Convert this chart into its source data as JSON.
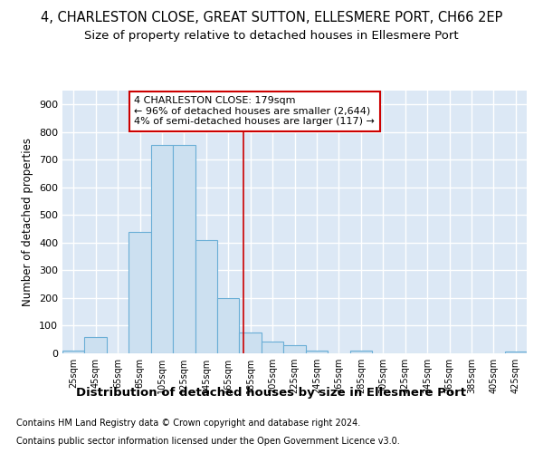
{
  "title1": "4, CHARLESTON CLOSE, GREAT SUTTON, ELLESMERE PORT, CH66 2EP",
  "title2": "Size of property relative to detached houses in Ellesmere Port",
  "xlabel": "Distribution of detached houses by size in Ellesmere Port",
  "ylabel": "Number of detached properties",
  "footnote1": "Contains HM Land Registry data © Crown copyright and database right 2024.",
  "footnote2": "Contains public sector information licensed under the Open Government Licence v3.0.",
  "bin_labels": [
    "25sqm",
    "45sqm",
    "65sqm",
    "85sqm",
    "105sqm",
    "125sqm",
    "145sqm",
    "165sqm",
    "185sqm",
    "205sqm",
    "225sqm",
    "245sqm",
    "265sqm",
    "285sqm",
    "305sqm",
    "325sqm",
    "345sqm",
    "365sqm",
    "385sqm",
    "405sqm",
    "425sqm"
  ],
  "bin_edges": [
    15,
    35,
    55,
    75,
    95,
    115,
    135,
    155,
    175,
    195,
    215,
    235,
    255,
    275,
    295,
    315,
    335,
    355,
    375,
    395,
    415,
    435
  ],
  "bar_heights": [
    10,
    60,
    0,
    440,
    752,
    752,
    410,
    200,
    75,
    43,
    28,
    10,
    0,
    10,
    0,
    0,
    0,
    0,
    0,
    0,
    5
  ],
  "bar_color": "#cce0f0",
  "bar_edge_color": "#6aaed6",
  "property_size": 179,
  "vline_color": "#cc0000",
  "annotation_text": "4 CHARLESTON CLOSE: 179sqm\n← 96% of detached houses are smaller (2,644)\n4% of semi-detached houses are larger (117) →",
  "annotation_box_color": "#cc0000",
  "ylim": [
    0,
    950
  ],
  "yticks": [
    0,
    100,
    200,
    300,
    400,
    500,
    600,
    700,
    800,
    900
  ],
  "fig_bg_color": "#ffffff",
  "plot_bg_color": "#dce8f5",
  "grid_color": "#ffffff",
  "title1_fontsize": 10.5,
  "title2_fontsize": 9.5,
  "xlabel_fontsize": 9.5,
  "ylabel_fontsize": 8.5,
  "footnote_fontsize": 7,
  "annot_fontsize": 8
}
